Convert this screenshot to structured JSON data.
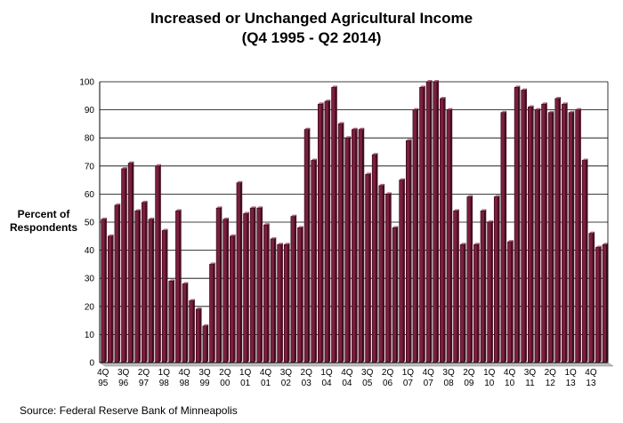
{
  "chart_data": {
    "type": "bar",
    "title": "Increased or Unchanged Agricultural Income",
    "subtitle": "(Q4 1995 - Q2 2014)",
    "ylabel": [
      "Percent of",
      "Respondents"
    ],
    "xlabel": "",
    "ylim": [
      0,
      100
    ],
    "yticks": [
      "0",
      "10",
      "20",
      "30",
      "40",
      "50",
      "60",
      "70",
      "80",
      "90",
      "100"
    ],
    "grid": true,
    "bar_color": "#7a1f3d",
    "x_tick_labels": [
      {
        "index": 0,
        "q": "4Q",
        "y": "95"
      },
      {
        "index": 3,
        "q": "3Q",
        "y": "96"
      },
      {
        "index": 6,
        "q": "2Q",
        "y": "97"
      },
      {
        "index": 9,
        "q": "1Q",
        "y": "98"
      },
      {
        "index": 12,
        "q": "4Q",
        "y": "98"
      },
      {
        "index": 15,
        "q": "3Q",
        "y": "99"
      },
      {
        "index": 18,
        "q": "2Q",
        "y": "00"
      },
      {
        "index": 21,
        "q": "1Q",
        "y": "01"
      },
      {
        "index": 24,
        "q": "4Q",
        "y": "01"
      },
      {
        "index": 27,
        "q": "3Q",
        "y": "02"
      },
      {
        "index": 30,
        "q": "2Q",
        "y": "03"
      },
      {
        "index": 33,
        "q": "1Q",
        "y": "04"
      },
      {
        "index": 36,
        "q": "4Q",
        "y": "04"
      },
      {
        "index": 39,
        "q": "3Q",
        "y": "05"
      },
      {
        "index": 42,
        "q": "2Q",
        "y": "06"
      },
      {
        "index": 45,
        "q": "1Q",
        "y": "07"
      },
      {
        "index": 48,
        "q": "4Q",
        "y": "07"
      },
      {
        "index": 51,
        "q": "3Q",
        "y": "08"
      },
      {
        "index": 54,
        "q": "2Q",
        "y": "09"
      },
      {
        "index": 57,
        "q": "1Q",
        "y": "10"
      },
      {
        "index": 60,
        "q": "4Q",
        "y": "10"
      },
      {
        "index": 63,
        "q": "3Q",
        "y": "11"
      },
      {
        "index": 66,
        "q": "2Q",
        "y": "12"
      },
      {
        "index": 69,
        "q": "1Q",
        "y": "13"
      },
      {
        "index": 72,
        "q": "4Q",
        "y": "13"
      }
    ],
    "values": [
      51,
      45,
      56,
      69,
      71,
      54,
      57,
      51,
      70,
      47,
      29,
      54,
      28,
      22,
      19,
      13,
      35,
      55,
      51,
      45,
      64,
      53,
      55,
      55,
      49,
      44,
      42,
      42,
      52,
      48,
      83,
      72,
      92,
      93,
      98,
      85,
      80,
      83,
      83,
      67,
      74,
      63,
      60,
      48,
      65,
      79,
      90,
      98,
      100,
      100,
      94,
      90,
      54,
      42,
      59,
      42,
      54,
      50,
      59,
      89,
      43,
      98,
      97,
      91,
      90,
      92,
      89,
      94,
      92,
      89,
      90,
      72,
      46,
      41,
      42
    ]
  },
  "source": "Source: Federal Reserve Bank of Minneapolis"
}
